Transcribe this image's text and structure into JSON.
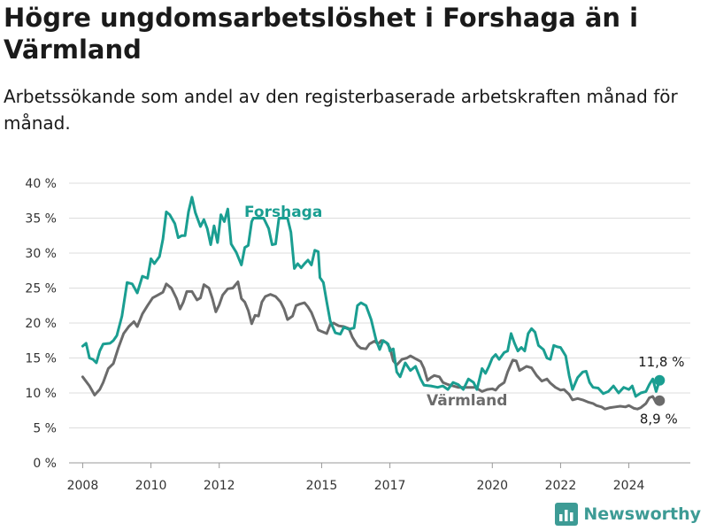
{
  "header": {
    "title": "Högre ungdomsarbetslöshet i Forshaga än i Värmland",
    "subtitle": "Arbetssökande som andel av den registerbaserade arbetskraften månad för månad."
  },
  "brand": {
    "name": "Newsworthy",
    "color": "#3d9b95"
  },
  "chart_data": {
    "type": "line",
    "x_unit": "year",
    "xlim": [
      2007.6,
      2025.8
    ],
    "ylim": [
      0,
      40
    ],
    "yticks": [
      0,
      5,
      10,
      15,
      20,
      25,
      30,
      35,
      40
    ],
    "ytick_labels": [
      "0 %",
      "5 %",
      "10 %",
      "15 %",
      "20 %",
      "25 %",
      "30 %",
      "35 %",
      "40 %"
    ],
    "xticks": [
      2008,
      2010,
      2012,
      2015,
      2017,
      2020,
      2022,
      2024
    ],
    "xtick_labels": [
      "2008",
      "2010",
      "2012",
      "2015",
      "2017",
      "2020",
      "2022",
      "2024"
    ],
    "grid": true,
    "series": [
      {
        "name": "Forshaga",
        "color": "#1a9e91",
        "end_label": "11,8 %",
        "points": [
          [
            2008.0,
            16.7
          ],
          [
            2008.1,
            17.1
          ],
          [
            2008.2,
            15.0
          ],
          [
            2008.3,
            14.8
          ],
          [
            2008.4,
            14.3
          ],
          [
            2008.5,
            16.0
          ],
          [
            2008.6,
            17.0
          ],
          [
            2008.8,
            17.1
          ],
          [
            2008.9,
            17.5
          ],
          [
            2009.0,
            18.2
          ],
          [
            2009.15,
            21.0
          ],
          [
            2009.3,
            25.8
          ],
          [
            2009.45,
            25.6
          ],
          [
            2009.6,
            24.3
          ],
          [
            2009.75,
            26.7
          ],
          [
            2009.9,
            26.4
          ],
          [
            2010.0,
            29.2
          ],
          [
            2010.1,
            28.5
          ],
          [
            2010.25,
            29.5
          ],
          [
            2010.35,
            32.0
          ],
          [
            2010.45,
            35.9
          ],
          [
            2010.55,
            35.5
          ],
          [
            2010.7,
            34.2
          ],
          [
            2010.8,
            32.2
          ],
          [
            2010.9,
            32.5
          ],
          [
            2011.0,
            32.5
          ],
          [
            2011.1,
            35.9
          ],
          [
            2011.2,
            38.0
          ],
          [
            2011.3,
            35.8
          ],
          [
            2011.45,
            33.8
          ],
          [
            2011.55,
            34.8
          ],
          [
            2011.65,
            33.5
          ],
          [
            2011.75,
            31.2
          ],
          [
            2011.85,
            33.9
          ],
          [
            2011.95,
            31.5
          ],
          [
            2012.05,
            35.5
          ],
          [
            2012.15,
            34.5
          ],
          [
            2012.25,
            36.3
          ],
          [
            2012.35,
            31.3
          ],
          [
            2012.5,
            30.1
          ],
          [
            2012.65,
            28.3
          ],
          [
            2012.75,
            30.8
          ],
          [
            2012.85,
            31.1
          ],
          [
            2012.95,
            34.5
          ],
          [
            2013.0,
            35.0
          ],
          [
            2013.3,
            35.0
          ],
          [
            2013.45,
            33.5
          ],
          [
            2013.55,
            31.2
          ],
          [
            2013.65,
            31.3
          ],
          [
            2013.75,
            35.0
          ],
          [
            2014.0,
            35.0
          ],
          [
            2014.1,
            33.0
          ],
          [
            2014.2,
            27.8
          ],
          [
            2014.3,
            28.5
          ],
          [
            2014.4,
            27.9
          ],
          [
            2014.5,
            28.5
          ],
          [
            2014.6,
            29.0
          ],
          [
            2014.7,
            28.3
          ],
          [
            2014.8,
            30.4
          ],
          [
            2014.9,
            30.2
          ],
          [
            2014.95,
            26.5
          ],
          [
            2015.05,
            25.8
          ],
          [
            2015.15,
            23.0
          ],
          [
            2015.25,
            20.3
          ],
          [
            2015.4,
            18.6
          ],
          [
            2015.55,
            18.4
          ],
          [
            2015.65,
            19.4
          ],
          [
            2015.8,
            19.1
          ],
          [
            2015.95,
            19.3
          ],
          [
            2016.05,
            22.5
          ],
          [
            2016.15,
            22.9
          ],
          [
            2016.3,
            22.5
          ],
          [
            2016.45,
            20.5
          ],
          [
            2016.6,
            17.5
          ],
          [
            2016.7,
            16.2
          ],
          [
            2016.8,
            17.5
          ],
          [
            2016.95,
            17.0
          ],
          [
            2017.0,
            16.0
          ],
          [
            2017.1,
            16.3
          ],
          [
            2017.2,
            13.0
          ],
          [
            2017.3,
            12.3
          ],
          [
            2017.45,
            14.3
          ],
          [
            2017.6,
            13.2
          ],
          [
            2017.75,
            13.8
          ],
          [
            2017.9,
            12.0
          ],
          [
            2018.0,
            11.1
          ],
          [
            2018.2,
            11.0
          ],
          [
            2018.4,
            10.8
          ],
          [
            2018.55,
            11.0
          ],
          [
            2018.7,
            10.5
          ],
          [
            2018.85,
            11.5
          ],
          [
            2019.0,
            11.2
          ],
          [
            2019.15,
            10.5
          ],
          [
            2019.3,
            12.0
          ],
          [
            2019.45,
            11.5
          ],
          [
            2019.55,
            10.5
          ],
          [
            2019.7,
            13.5
          ],
          [
            2019.8,
            12.8
          ],
          [
            2019.9,
            13.8
          ],
          [
            2020.0,
            15.0
          ],
          [
            2020.1,
            15.5
          ],
          [
            2020.2,
            14.8
          ],
          [
            2020.35,
            15.8
          ],
          [
            2020.45,
            16.0
          ],
          [
            2020.55,
            18.5
          ],
          [
            2020.65,
            17.1
          ],
          [
            2020.75,
            16.0
          ],
          [
            2020.85,
            16.5
          ],
          [
            2020.95,
            16.0
          ],
          [
            2021.05,
            18.5
          ],
          [
            2021.15,
            19.2
          ],
          [
            2021.25,
            18.7
          ],
          [
            2021.35,
            16.8
          ],
          [
            2021.5,
            16.2
          ],
          [
            2021.6,
            15.0
          ],
          [
            2021.7,
            14.8
          ],
          [
            2021.8,
            16.8
          ],
          [
            2021.9,
            16.6
          ],
          [
            2022.0,
            16.5
          ],
          [
            2022.15,
            15.3
          ],
          [
            2022.25,
            12.5
          ],
          [
            2022.35,
            10.5
          ],
          [
            2022.5,
            12.2
          ],
          [
            2022.65,
            13.0
          ],
          [
            2022.75,
            13.1
          ],
          [
            2022.85,
            11.5
          ],
          [
            2022.95,
            10.8
          ],
          [
            2023.1,
            10.7
          ],
          [
            2023.25,
            9.9
          ],
          [
            2023.4,
            10.2
          ],
          [
            2023.55,
            11.0
          ],
          [
            2023.7,
            10.0
          ],
          [
            2023.85,
            10.8
          ],
          [
            2024.0,
            10.5
          ],
          [
            2024.1,
            11.0
          ],
          [
            2024.2,
            9.5
          ],
          [
            2024.35,
            10.0
          ],
          [
            2024.5,
            10.2
          ],
          [
            2024.6,
            11.2
          ],
          [
            2024.7,
            12.0
          ],
          [
            2024.8,
            10.2
          ],
          [
            2024.9,
            11.8
          ]
        ]
      },
      {
        "name": "Värmland",
        "color": "#6b6b6b",
        "end_label": "8,9 %",
        "points": [
          [
            2008.0,
            12.3
          ],
          [
            2008.2,
            11.0
          ],
          [
            2008.35,
            9.7
          ],
          [
            2008.5,
            10.5
          ],
          [
            2008.6,
            11.5
          ],
          [
            2008.75,
            13.5
          ],
          [
            2008.9,
            14.2
          ],
          [
            2009.05,
            16.5
          ],
          [
            2009.2,
            18.5
          ],
          [
            2009.35,
            19.5
          ],
          [
            2009.5,
            20.2
          ],
          [
            2009.6,
            19.5
          ],
          [
            2009.75,
            21.3
          ],
          [
            2009.9,
            22.5
          ],
          [
            2010.05,
            23.6
          ],
          [
            2010.2,
            24.0
          ],
          [
            2010.35,
            24.4
          ],
          [
            2010.45,
            25.6
          ],
          [
            2010.6,
            25.0
          ],
          [
            2010.75,
            23.5
          ],
          [
            2010.85,
            22.0
          ],
          [
            2010.95,
            23.0
          ],
          [
            2011.05,
            24.5
          ],
          [
            2011.2,
            24.5
          ],
          [
            2011.35,
            23.3
          ],
          [
            2011.45,
            23.6
          ],
          [
            2011.55,
            25.5
          ],
          [
            2011.7,
            25.0
          ],
          [
            2011.8,
            23.5
          ],
          [
            2011.9,
            21.6
          ],
          [
            2012.0,
            22.6
          ],
          [
            2012.1,
            24.0
          ],
          [
            2012.25,
            24.9
          ],
          [
            2012.4,
            25.0
          ],
          [
            2012.55,
            25.9
          ],
          [
            2012.65,
            23.5
          ],
          [
            2012.75,
            23.0
          ],
          [
            2012.85,
            21.8
          ],
          [
            2012.95,
            19.9
          ],
          [
            2013.05,
            21.1
          ],
          [
            2013.15,
            21.0
          ],
          [
            2013.25,
            23.0
          ],
          [
            2013.35,
            23.8
          ],
          [
            2013.5,
            24.1
          ],
          [
            2013.65,
            23.8
          ],
          [
            2013.8,
            23.0
          ],
          [
            2013.9,
            22.0
          ],
          [
            2014.0,
            20.5
          ],
          [
            2014.15,
            21.0
          ],
          [
            2014.25,
            22.5
          ],
          [
            2014.35,
            22.7
          ],
          [
            2014.5,
            22.9
          ],
          [
            2014.6,
            22.3
          ],
          [
            2014.7,
            21.5
          ],
          [
            2014.8,
            20.3
          ],
          [
            2014.9,
            19.0
          ],
          [
            2015.0,
            18.8
          ],
          [
            2015.15,
            18.5
          ],
          [
            2015.25,
            19.8
          ],
          [
            2015.35,
            20.0
          ],
          [
            2015.5,
            19.6
          ],
          [
            2015.65,
            19.5
          ],
          [
            2015.8,
            19.2
          ],
          [
            2015.9,
            18.0
          ],
          [
            2016.05,
            16.8
          ],
          [
            2016.15,
            16.4
          ],
          [
            2016.3,
            16.3
          ],
          [
            2016.4,
            17.0
          ],
          [
            2016.55,
            17.4
          ],
          [
            2016.65,
            17.0
          ],
          [
            2016.75,
            17.5
          ],
          [
            2016.9,
            17.2
          ],
          [
            2017.0,
            16.4
          ],
          [
            2017.1,
            14.6
          ],
          [
            2017.2,
            14.0
          ],
          [
            2017.35,
            14.8
          ],
          [
            2017.5,
            15.0
          ],
          [
            2017.6,
            15.3
          ],
          [
            2017.75,
            14.9
          ],
          [
            2017.9,
            14.5
          ],
          [
            2018.0,
            13.5
          ],
          [
            2018.1,
            11.8
          ],
          [
            2018.2,
            12.2
          ],
          [
            2018.3,
            12.5
          ],
          [
            2018.45,
            12.3
          ],
          [
            2018.55,
            11.5
          ],
          [
            2018.7,
            11.2
          ],
          [
            2018.85,
            11.0
          ],
          [
            2019.0,
            10.8
          ],
          [
            2019.5,
            10.8
          ],
          [
            2019.7,
            10.2
          ],
          [
            2019.85,
            10.5
          ],
          [
            2020.0,
            10.6
          ],
          [
            2020.1,
            10.4
          ],
          [
            2020.2,
            11.0
          ],
          [
            2020.35,
            11.5
          ],
          [
            2020.45,
            13.0
          ],
          [
            2020.6,
            14.7
          ],
          [
            2020.7,
            14.6
          ],
          [
            2020.8,
            13.2
          ],
          [
            2020.9,
            13.5
          ],
          [
            2021.0,
            13.8
          ],
          [
            2021.15,
            13.6
          ],
          [
            2021.3,
            12.5
          ],
          [
            2021.45,
            11.7
          ],
          [
            2021.6,
            12.0
          ],
          [
            2021.7,
            11.4
          ],
          [
            2021.85,
            10.8
          ],
          [
            2022.0,
            10.4
          ],
          [
            2022.1,
            10.5
          ],
          [
            2022.25,
            9.8
          ],
          [
            2022.35,
            9.0
          ],
          [
            2022.5,
            9.2
          ],
          [
            2022.65,
            9.0
          ],
          [
            2022.8,
            8.7
          ],
          [
            2022.95,
            8.5
          ],
          [
            2023.05,
            8.2
          ],
          [
            2023.2,
            8.0
          ],
          [
            2023.3,
            7.7
          ],
          [
            2023.45,
            7.9
          ],
          [
            2023.6,
            8.0
          ],
          [
            2023.75,
            8.1
          ],
          [
            2023.9,
            8.0
          ],
          [
            2024.0,
            8.2
          ],
          [
            2024.15,
            7.8
          ],
          [
            2024.25,
            7.7
          ],
          [
            2024.35,
            7.9
          ],
          [
            2024.5,
            8.5
          ],
          [
            2024.6,
            9.3
          ],
          [
            2024.7,
            9.5
          ],
          [
            2024.8,
            8.6
          ],
          [
            2024.9,
            8.9
          ]
        ]
      }
    ]
  }
}
